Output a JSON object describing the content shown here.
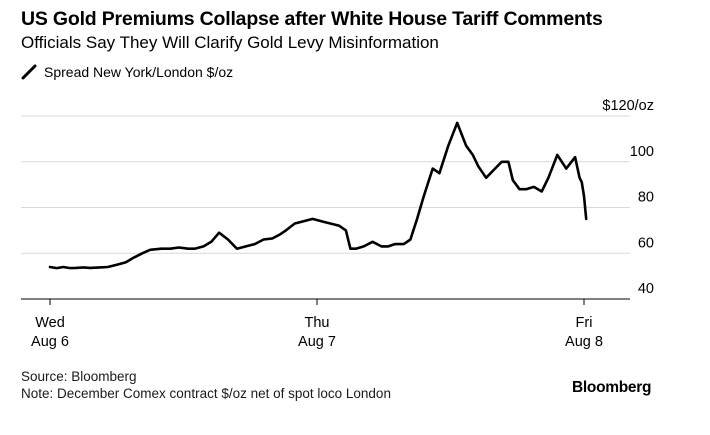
{
  "colors": {
    "line": "#000000",
    "grid": "#d9d9d9",
    "axis": "#000000",
    "text": "#000000"
  },
  "chart_data": {
    "type": "line",
    "title": "US Gold Premiums Collapse after White House Tariff Comments",
    "subtitle": "Officials Say They Will Clarify Gold Levy Misinformation",
    "ylabel": "",
    "xlabel": "",
    "y_unit_label": "$120/oz",
    "ylim": [
      40,
      120
    ],
    "xlim": [
      0,
      50.7
    ],
    "grid": true,
    "y_axis_side": "right",
    "legend_placement": "top-left",
    "y_ticks": [
      {
        "value": 40,
        "label": "40"
      },
      {
        "value": 60,
        "label": "60"
      },
      {
        "value": 80,
        "label": "80"
      },
      {
        "value": 100,
        "label": "100"
      },
      {
        "value": 120,
        "label": "$120/oz"
      }
    ],
    "x_ticks": [
      {
        "value": 0,
        "day": "Wed",
        "date": "Aug 6"
      },
      {
        "value": 24,
        "day": "Thu",
        "date": "Aug 7"
      },
      {
        "value": 48,
        "day": "Fri",
        "date": "Aug 8"
      }
    ],
    "series": [
      {
        "name": "Spread New York/London $/oz",
        "x": [
          0,
          0.6,
          1.2,
          1.8,
          2.3,
          3.0,
          3.6,
          4.5,
          5.2,
          6.0,
          6.8,
          7.5,
          8.3,
          9.0,
          10.0,
          10.8,
          11.6,
          12.4,
          13.0,
          13.8,
          14.5,
          15.2,
          16.0,
          16.8,
          17.6,
          18.4,
          19.2,
          20.0,
          20.6,
          21.2,
          22.0,
          22.8,
          23.6,
          24.4,
          25.2,
          26.0,
          26.6,
          27.0,
          27.5,
          28.2,
          29.0,
          29.8,
          30.4,
          31.0,
          31.8,
          32.4,
          33.0,
          33.6,
          34.4,
          35.0,
          35.8,
          36.6,
          37.4,
          38.0,
          38.5,
          39.2,
          40.0,
          40.6,
          41.2,
          41.6,
          42.2,
          42.8,
          43.5,
          44.2,
          44.8,
          45.6,
          46.4,
          47.2,
          47.6,
          47.8,
          48.0,
          48.2
        ],
        "values": [
          54,
          53.5,
          54,
          53.5,
          53.6,
          53.8,
          53.6,
          53.8,
          54,
          55,
          56,
          58,
          60,
          61.5,
          62,
          62,
          62.5,
          62,
          62,
          63,
          65,
          69,
          66,
          62,
          63,
          64,
          66,
          66.5,
          68,
          70,
          73,
          74,
          75,
          74,
          73,
          72,
          70,
          62,
          62,
          63,
          65,
          63,
          63,
          64,
          64,
          66,
          75,
          85,
          97,
          95,
          107,
          117,
          107,
          103,
          98,
          93,
          97,
          100,
          100,
          92,
          88,
          88,
          89,
          87,
          93,
          103,
          97,
          102,
          93,
          91,
          85,
          75
        ]
      }
    ]
  },
  "footer": {
    "source": "Source: Bloomberg",
    "note": "Note: December Comex contract $/oz net of spot loco London",
    "brand": "Bloomberg"
  }
}
